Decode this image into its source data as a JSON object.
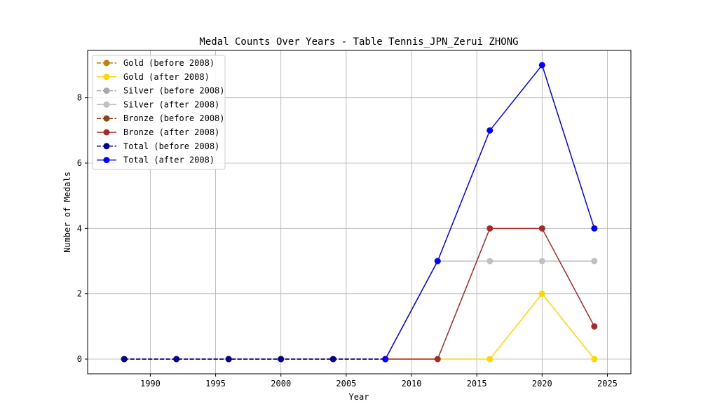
{
  "chart_data": {
    "type": "line",
    "title": "Medal Counts Over Years - Table Tennis_JPN_Zerui ZHONG",
    "xlabel": "Year",
    "ylabel": "Number of Medals",
    "xlim": [
      1985.2,
      2026.8
    ],
    "ylim": [
      -0.45,
      9.45
    ],
    "xticks": [
      1990,
      1995,
      2000,
      2005,
      2010,
      2015,
      2020,
      2025
    ],
    "yticks": [
      0,
      2,
      4,
      6,
      8
    ],
    "grid": true,
    "legend_position": "upper-left",
    "series": [
      {
        "name": "Gold (before 2008)",
        "color": "#b8860b",
        "dashed": true,
        "x": [
          1988,
          1992,
          1996,
          2000,
          2004,
          2008
        ],
        "y": [
          0,
          0,
          0,
          0,
          0,
          0
        ]
      },
      {
        "name": "Gold (after 2008)",
        "color": "#ffd700",
        "dashed": false,
        "x": [
          2008,
          2012,
          2016,
          2020,
          2024
        ],
        "y": [
          0,
          0,
          0,
          2,
          0
        ]
      },
      {
        "name": "Silver (before 2008)",
        "color": "#a9a9a9",
        "dashed": true,
        "x": [
          1988,
          1992,
          1996,
          2000,
          2004,
          2008
        ],
        "y": [
          0,
          0,
          0,
          0,
          0,
          0
        ]
      },
      {
        "name": "Silver (after 2008)",
        "color": "#c0c0c0",
        "dashed": false,
        "x": [
          2008,
          2012,
          2016,
          2020,
          2024
        ],
        "y": [
          0,
          3,
          3,
          3,
          3
        ]
      },
      {
        "name": "Bronze (before 2008)",
        "color": "#8b4513",
        "dashed": true,
        "x": [
          1988,
          1992,
          1996,
          2000,
          2004,
          2008
        ],
        "y": [
          0,
          0,
          0,
          0,
          0,
          0
        ]
      },
      {
        "name": "Bronze (after 2008)",
        "color": "#a52a2a",
        "dashed": false,
        "x": [
          2008,
          2012,
          2016,
          2020,
          2024
        ],
        "y": [
          0,
          0,
          4,
          4,
          1
        ]
      },
      {
        "name": "Total (before 2008)",
        "color": "#00008b",
        "dashed": true,
        "x": [
          1988,
          1992,
          1996,
          2000,
          2004,
          2008
        ],
        "y": [
          0,
          0,
          0,
          0,
          0,
          0
        ]
      },
      {
        "name": "Total (after 2008)",
        "color": "#0000ff",
        "dashed": false,
        "x": [
          2008,
          2012,
          2016,
          2020,
          2024
        ],
        "y": [
          0,
          3,
          7,
          9,
          4
        ]
      }
    ]
  }
}
